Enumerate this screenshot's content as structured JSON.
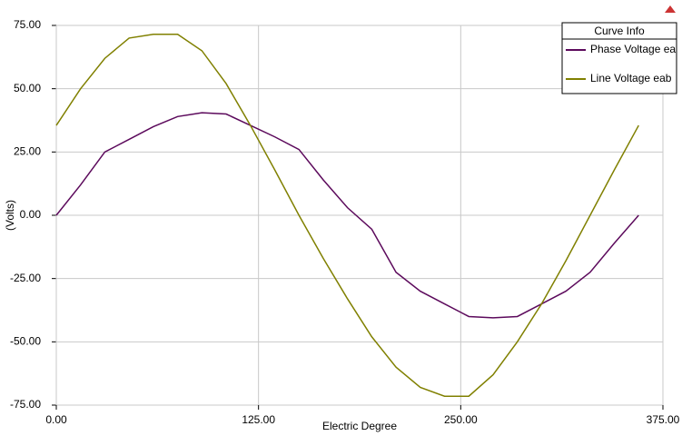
{
  "chart_data": {
    "type": "line",
    "x_label": "Electric Degree",
    "y_label": "(Volts)",
    "legend_title": "Curve Info",
    "legend": "top-right",
    "grid": true,
    "x": [
      0,
      15,
      30,
      45,
      60,
      75,
      90,
      105,
      120,
      135,
      150,
      165,
      180,
      195,
      210,
      225,
      240,
      255,
      270,
      285,
      300,
      315,
      330,
      345,
      360
    ],
    "series": [
      {
        "name": "Phase Voltage ea",
        "color": "#5c0a5c",
        "values": [
          0,
          12,
          25,
          30,
          35,
          39,
          40.5,
          40,
          35.5,
          31,
          26,
          14,
          3,
          -5.5,
          -22.5,
          -30,
          -35,
          -40,
          -40.5,
          -40,
          -35,
          -30,
          -22.5,
          -11,
          0
        ]
      },
      {
        "name": "Line Voltage eab",
        "color": "#808000",
        "values": [
          35.5,
          50,
          62,
          70,
          71.5,
          71.5,
          65,
          52,
          35.5,
          18,
          0,
          -17,
          -33,
          -48,
          -60,
          -68,
          -71.5,
          -71.5,
          -63,
          -50,
          -35,
          -18,
          0,
          18,
          35.5
        ]
      }
    ],
    "xlim": [
      0,
      375
    ],
    "xticks": [
      {
        "value": 0,
        "label": "0.00"
      },
      {
        "value": 125,
        "label": "125.00"
      },
      {
        "value": 250,
        "label": "250.00"
      },
      {
        "value": 375,
        "label": "375.00"
      }
    ],
    "ylim": [
      -75,
      75
    ],
    "yticks": [
      {
        "value": 75,
        "label": "75.00"
      },
      {
        "value": 50,
        "label": "50.00"
      },
      {
        "value": 25,
        "label": "25.00"
      },
      {
        "value": 0,
        "label": "0.00"
      },
      {
        "value": -25,
        "label": "-25.00"
      },
      {
        "value": -50,
        "label": "-50.00"
      },
      {
        "value": -75,
        "label": "-75.00"
      }
    ]
  }
}
